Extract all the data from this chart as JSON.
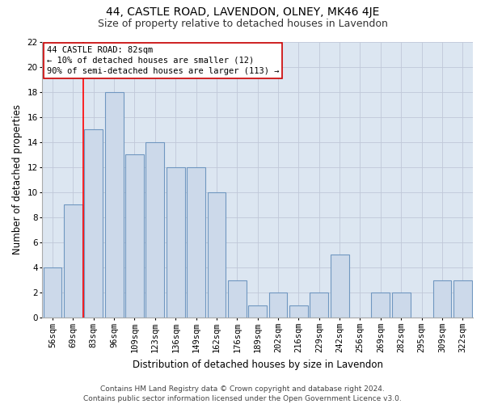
{
  "title1": "44, CASTLE ROAD, LAVENDON, OLNEY, MK46 4JE",
  "title2": "Size of property relative to detached houses in Lavendon",
  "xlabel": "Distribution of detached houses by size in Lavendon",
  "ylabel": "Number of detached properties",
  "footer1": "Contains HM Land Registry data © Crown copyright and database right 2024.",
  "footer2": "Contains public sector information licensed under the Open Government Licence v3.0.",
  "annotation_line1": "44 CASTLE ROAD: 82sqm",
  "annotation_line2": "← 10% of detached houses are smaller (12)",
  "annotation_line3": "90% of semi-detached houses are larger (113) →",
  "bar_labels": [
    "56sqm",
    "69sqm",
    "83sqm",
    "96sqm",
    "109sqm",
    "123sqm",
    "136sqm",
    "149sqm",
    "162sqm",
    "176sqm",
    "189sqm",
    "202sqm",
    "216sqm",
    "229sqm",
    "242sqm",
    "256sqm",
    "269sqm",
    "282sqm",
    "295sqm",
    "309sqm",
    "322sqm"
  ],
  "bar_values": [
    4,
    9,
    15,
    18,
    13,
    14,
    12,
    12,
    10,
    3,
    1,
    2,
    1,
    2,
    5,
    0,
    2,
    2,
    0,
    3,
    3
  ],
  "bar_color": "#ccd9ea",
  "bar_edge_color": "#7097c0",
  "red_line_x": 1.5,
  "ylim": [
    0,
    22
  ],
  "yticks": [
    0,
    2,
    4,
    6,
    8,
    10,
    12,
    14,
    16,
    18,
    20,
    22
  ],
  "background_color": "#ffffff",
  "plot_bg_color": "#dce6f1",
  "annotation_box_color": "#ffffff",
  "annotation_box_edge": "#cc0000",
  "title1_fontsize": 10,
  "title2_fontsize": 9,
  "xlabel_fontsize": 8.5,
  "ylabel_fontsize": 8.5,
  "tick_fontsize": 7.5,
  "footer_fontsize": 6.5,
  "ann_fontsize": 7.5
}
